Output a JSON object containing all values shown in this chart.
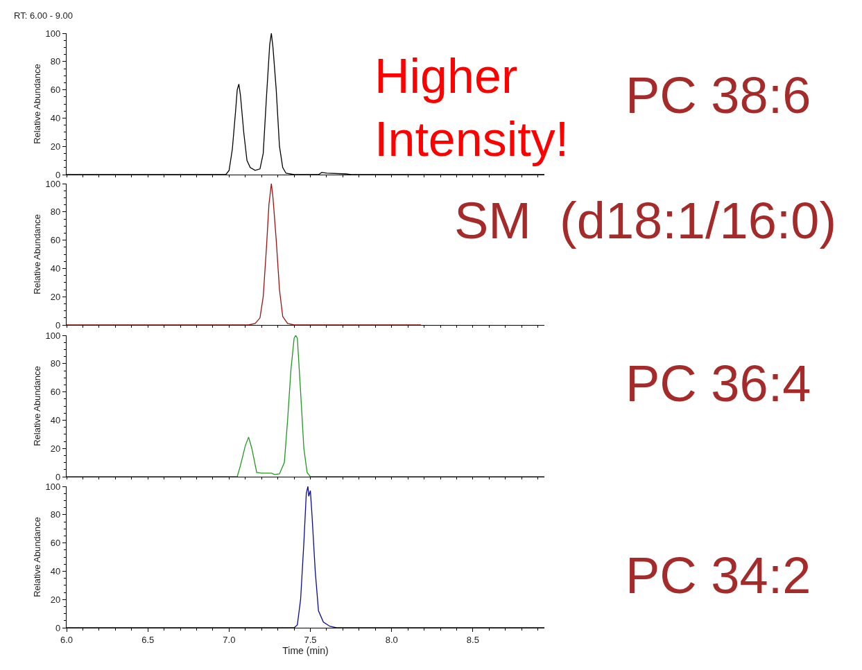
{
  "chart_data": [
    {
      "type": "line",
      "ylabel": "Relative Abundance",
      "xlim": [
        6.0,
        8.94
      ],
      "ylim": [
        0,
        100
      ],
      "yticks": [
        0,
        20,
        40,
        60,
        80,
        100
      ],
      "xticks": [
        {
          "value": 6.0,
          "label": null
        },
        {
          "value": 6.5,
          "label": null
        },
        {
          "value": 7.0,
          "label": null
        },
        {
          "value": 7.5,
          "label": null
        },
        {
          "value": 8.0,
          "label": null
        },
        {
          "value": 8.5,
          "label": null
        }
      ],
      "tick_labels": "y",
      "annotations": [
        "RT: 6.00 - 9.00",
        "Higher\nIntensity!",
        "PC 38:6"
      ],
      "series": [
        {
          "color": "#000000",
          "x": [
            6.0,
            6.98,
            7.0,
            7.02,
            7.04,
            7.05,
            7.06,
            7.065,
            7.07,
            7.09,
            7.11,
            7.13,
            7.16,
            7.19,
            7.21,
            7.23,
            7.25,
            7.26,
            7.27,
            7.29,
            7.31,
            7.33,
            7.35,
            7.4,
            7.55,
            7.57,
            7.6,
            7.72,
            7.75,
            8.94
          ],
          "values": [
            0,
            0,
            3,
            18,
            45,
            60,
            64,
            60,
            56,
            30,
            10,
            5,
            3,
            4,
            15,
            55,
            92,
            100,
            90,
            60,
            20,
            5,
            1,
            0,
            0,
            1.5,
            1,
            0.5,
            0,
            0
          ]
        }
      ]
    },
    {
      "type": "line",
      "ylabel": "Relative Abundance",
      "xlim": [
        6.0,
        8.94
      ],
      "ylim": [
        0,
        100
      ],
      "yticks": [
        0,
        20,
        40,
        60,
        80,
        100
      ],
      "xticks": [
        {
          "value": 6.0,
          "label": null
        },
        {
          "value": 6.5,
          "label": null
        },
        {
          "value": 7.0,
          "label": null
        },
        {
          "value": 7.5,
          "label": null
        },
        {
          "value": 8.0,
          "label": null
        },
        {
          "value": 8.5,
          "label": null
        }
      ],
      "tick_labels": "y",
      "annotations": [
        "SM  (d18:1/16:0)"
      ],
      "series": [
        {
          "color": "#a01010",
          "x": [
            6.0,
            7.12,
            7.16,
            7.19,
            7.21,
            7.23,
            7.245,
            7.26,
            7.27,
            7.29,
            7.31,
            7.33,
            7.36,
            7.4,
            8.18
          ],
          "values": [
            0,
            0,
            1,
            5,
            20,
            55,
            85,
            100,
            90,
            60,
            25,
            6,
            1,
            0,
            0
          ]
        }
      ]
    },
    {
      "type": "line",
      "ylabel": "Relative Abundance",
      "xlim": [
        6.0,
        8.94
      ],
      "ylim": [
        0,
        100
      ],
      "yticks": [
        0,
        20,
        40,
        60,
        80,
        100
      ],
      "xticks": [
        {
          "value": 6.0,
          "label": null
        },
        {
          "value": 6.5,
          "label": null
        },
        {
          "value": 7.0,
          "label": null
        },
        {
          "value": 7.5,
          "label": null
        },
        {
          "value": 8.0,
          "label": null
        },
        {
          "value": 8.5,
          "label": null
        }
      ],
      "tick_labels": "y",
      "annotations": [
        "PC 36:4"
      ],
      "series": [
        {
          "color": "#1f9a1f",
          "x": [
            6.0,
            7.05,
            7.07,
            7.1,
            7.12,
            7.14,
            7.17,
            7.2,
            7.26,
            7.28,
            7.31,
            7.34,
            7.36,
            7.38,
            7.4,
            7.41,
            7.42,
            7.44,
            7.46,
            7.48,
            7.5,
            8.94
          ],
          "values": [
            0,
            0,
            8,
            22,
            28,
            20,
            3,
            2.5,
            2.5,
            1.5,
            2,
            10,
            40,
            75,
            98,
            100,
            98,
            60,
            20,
            3,
            0,
            0
          ]
        }
      ]
    },
    {
      "type": "line",
      "ylabel": "Relative Abundance",
      "xlabel": "Time (min)",
      "xlim": [
        6.0,
        8.94
      ],
      "ylim": [
        0,
        100
      ],
      "yticks": [
        0,
        20,
        40,
        60,
        80,
        100
      ],
      "xticks": [
        {
          "value": 6.0,
          "label": "6.0"
        },
        {
          "value": 6.5,
          "label": "6.5"
        },
        {
          "value": 7.0,
          "label": "7.0"
        },
        {
          "value": 7.5,
          "label": "7.5"
        },
        {
          "value": 8.0,
          "label": "8.0"
        },
        {
          "value": 8.5,
          "label": "8.5"
        }
      ],
      "annotations": [
        "PC 34:2"
      ],
      "series": [
        {
          "color": "#0a0a9a",
          "x": [
            6.0,
            7.4,
            7.42,
            7.44,
            7.46,
            7.475,
            7.485,
            7.49,
            7.5,
            7.51,
            7.53,
            7.55,
            7.58,
            7.62,
            7.66,
            8.94
          ],
          "values": [
            0,
            0,
            2,
            20,
            60,
            95,
            100,
            93,
            97,
            80,
            40,
            12,
            4,
            1,
            0,
            0
          ]
        }
      ]
    }
  ]
}
